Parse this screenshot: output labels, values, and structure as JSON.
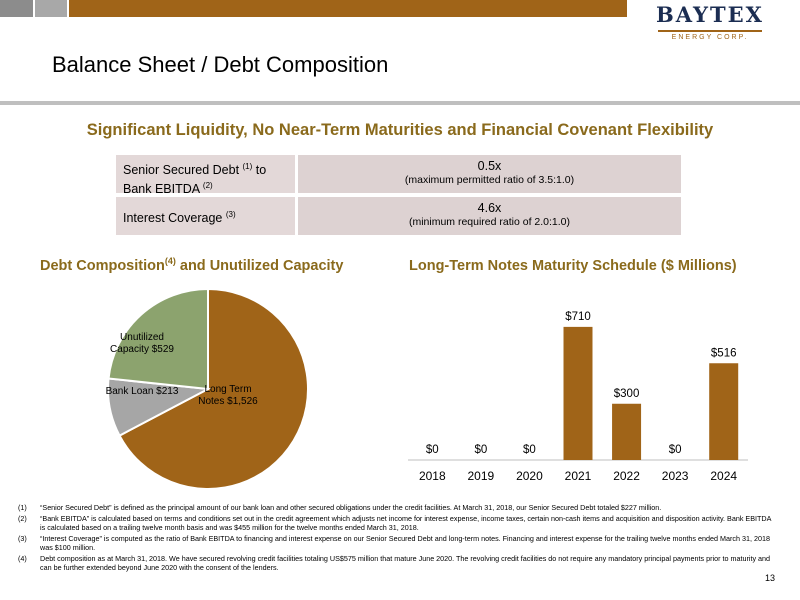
{
  "brand": {
    "name": "BAYTEX",
    "subtitle": "ENERGY CORP.",
    "accent_color": "#a06418",
    "headline_color": "#8a6a1c"
  },
  "page": {
    "title": "Balance Sheet / Debt Composition",
    "headline": "Significant Liquidity, No Near-Term Maturities and Financial Covenant Flexibility",
    "page_number": "13"
  },
  "ratios": [
    {
      "label_line1": "Senior Secured Debt ",
      "label_sup1": "(1)",
      "label_line1_tail": " to",
      "label_line2": "Bank EBITDA ",
      "label_sup2": "(2)",
      "value": "0.5x",
      "note": "(maximum permitted ratio of 3.5:1.0)"
    },
    {
      "label_line1": "Interest Coverage ",
      "label_sup1": "(3)",
      "value": "4.6x",
      "note": "(minimum required ratio of 2.0:1.0)"
    }
  ],
  "pie_section": {
    "title_main": "Debt Composition",
    "title_sup": "(4)",
    "title_tail": " and Unutilized Capacity"
  },
  "bar_section": {
    "title": "Long-Term Notes Maturity Schedule ($ Millions)"
  },
  "chart_data": [
    {
      "type": "pie",
      "slices": [
        {
          "label": "Long Term Notes $1,526",
          "label_lines": [
            "Long Term",
            "Notes $1,526"
          ],
          "value": 1526,
          "color": "#a06418"
        },
        {
          "label": "Bank Loan $213",
          "label_lines": [
            "Bank Loan $213"
          ],
          "value": 213,
          "color": "#a6a6a6"
        },
        {
          "label": "Unutilized Capacity $529",
          "label_lines": [
            "Unutilized",
            "Capacity $529"
          ],
          "value": 529,
          "color": "#8ca36e"
        }
      ]
    },
    {
      "type": "bar",
      "categories": [
        "2018",
        "2019",
        "2020",
        "2021",
        "2022",
        "2023",
        "2024"
      ],
      "values": [
        0,
        0,
        0,
        710,
        300,
        0,
        516
      ],
      "data_labels": [
        "$0",
        "$0",
        "$0",
        "$710",
        "$300",
        "$0",
        "$516"
      ],
      "color": "#a06418",
      "ylim": [
        0,
        800
      ],
      "grid": false
    }
  ],
  "footnotes": [
    {
      "num": "(1)",
      "text": "“Senior Secured Debt” is defined as the principal amount of our bank loan and other secured obligations under the credit facilities. At March 31, 2018, our Senior Secured Debt totaled $227 million."
    },
    {
      "num": "(2)",
      "text": "“Bank EBITDA” is calculated based on terms and conditions set out in the credit agreement which adjusts net income for interest expense, income taxes, certain non-cash items and acquisition and disposition activity. Bank EBITDA is calculated based on a trailing twelve month basis and was $455 million for the twelve months ended March 31, 2018."
    },
    {
      "num": "(3)",
      "text": "“Interest Coverage” is computed as the ratio of Bank EBITDA to financing and interest expense on our Senior Secured Debt and long-term notes. Financing and interest expense for the trailing twelve months ended March 31, 2018 was $100 million."
    },
    {
      "num": "(4)",
      "text": "Debt composition as at March 31, 2018. We have secured revolving credit facilities totaling US$575 million that mature June 2020. The revolving credit facilities do not require any mandatory principal payments prior to maturity and can be further extended beyond June 2020 with the consent of the lenders."
    }
  ]
}
